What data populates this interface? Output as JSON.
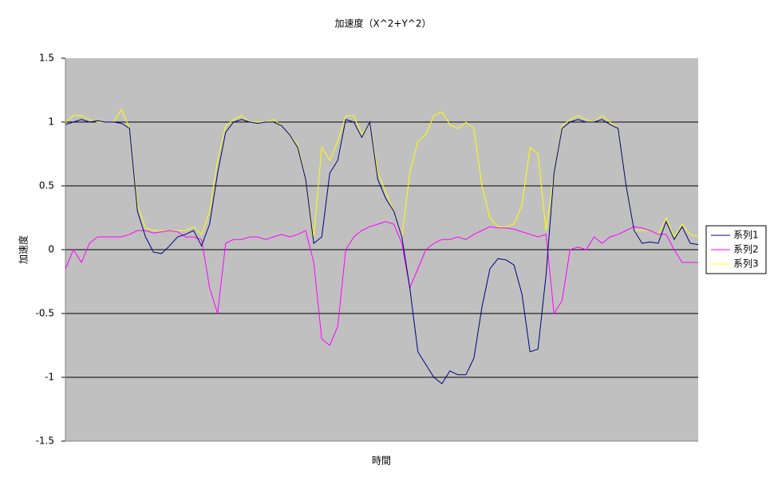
{
  "chart_data": {
    "type": "line",
    "title": "加速度（X^2+Y^2）",
    "x_label": "時間",
    "y_label": "加速度",
    "ylim": [
      -1.5,
      1.5
    ],
    "yticks": [
      -1.5,
      -1,
      -0.5,
      0,
      0.5,
      1,
      1.5
    ],
    "grid": true,
    "legend": "right",
    "series": [
      {
        "name": "系列1",
        "color": "#000080",
        "values": [
          0.98,
          1.0,
          1.02,
          1.0,
          1.01,
          1.0,
          1.0,
          0.99,
          0.95,
          0.3,
          0.1,
          -0.02,
          -0.03,
          0.03,
          0.1,
          0.12,
          0.15,
          0.03,
          0.2,
          0.6,
          0.92,
          1.0,
          1.02,
          1.0,
          0.99,
          1.0,
          1.0,
          0.97,
          0.9,
          0.8,
          0.55,
          0.05,
          0.1,
          0.6,
          0.7,
          1.02,
          1.0,
          0.88,
          1.0,
          0.55,
          0.4,
          0.3,
          0.1,
          -0.3,
          -0.8,
          -0.9,
          -1.0,
          -1.05,
          -0.95,
          -0.98,
          -0.98,
          -0.85,
          -0.45,
          -0.15,
          -0.07,
          -0.08,
          -0.12,
          -0.35,
          -0.8,
          -0.78,
          -0.2,
          0.6,
          0.95,
          1.0,
          1.02,
          1.0,
          1.0,
          1.02,
          0.98,
          0.95,
          0.5,
          0.15,
          0.05,
          0.06,
          0.05,
          0.22,
          0.08,
          0.18,
          0.05,
          0.04
        ]
      },
      {
        "name": "系列2",
        "color": "#ff00ff",
        "values": [
          -0.15,
          0.0,
          -0.1,
          0.05,
          0.1,
          0.1,
          0.1,
          0.1,
          0.12,
          0.15,
          0.15,
          0.13,
          0.14,
          0.15,
          0.14,
          0.1,
          0.1,
          0.08,
          -0.3,
          -0.5,
          0.05,
          0.08,
          0.08,
          0.1,
          0.1,
          0.08,
          0.1,
          0.12,
          0.1,
          0.12,
          0.15,
          -0.1,
          -0.7,
          -0.75,
          -0.6,
          0.0,
          0.1,
          0.15,
          0.18,
          0.2,
          0.22,
          0.2,
          0.05,
          -0.3,
          -0.15,
          0.0,
          0.05,
          0.08,
          0.08,
          0.1,
          0.08,
          0.12,
          0.15,
          0.18,
          0.17,
          0.17,
          0.16,
          0.14,
          0.12,
          0.1,
          0.12,
          -0.5,
          -0.4,
          0.0,
          0.02,
          0.0,
          0.1,
          0.05,
          0.1,
          0.12,
          0.15,
          0.18,
          0.17,
          0.15,
          0.12,
          0.12,
          0.0,
          -0.1,
          -0.1,
          -0.1
        ]
      },
      {
        "name": "系列3",
        "color": "#ffff00",
        "values": [
          1.0,
          1.05,
          1.05,
          1.02,
          1.0,
          1.0,
          1.0,
          1.1,
          0.95,
          0.35,
          0.17,
          0.15,
          0.15,
          0.15,
          0.15,
          0.15,
          0.18,
          0.12,
          0.3,
          0.7,
          0.97,
          1.02,
          1.05,
          1.0,
          1.0,
          1.0,
          1.02,
          0.97,
          0.9,
          0.82,
          0.55,
          0.1,
          0.8,
          0.7,
          0.85,
          1.05,
          1.05,
          0.9,
          1.0,
          0.6,
          0.45,
          0.3,
          0.1,
          0.6,
          0.85,
          0.9,
          1.05,
          1.08,
          0.98,
          0.95,
          1.0,
          0.95,
          0.5,
          0.25,
          0.18,
          0.18,
          0.2,
          0.35,
          0.8,
          0.75,
          0.15,
          0.6,
          0.97,
          1.02,
          1.05,
          1.02,
          1.0,
          1.05,
          1.0,
          0.95,
          0.5,
          0.15,
          0.15,
          0.15,
          0.12,
          0.25,
          0.1,
          0.2,
          0.12,
          0.1
        ]
      }
    ]
  }
}
